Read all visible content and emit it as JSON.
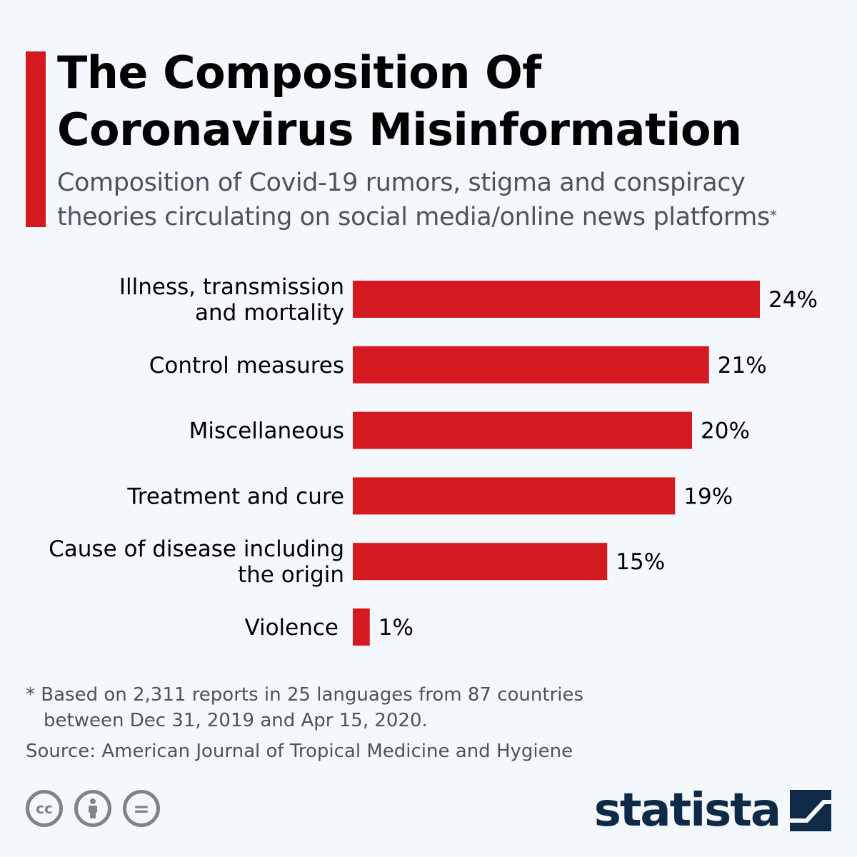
{
  "header": {
    "title_line1": "The Composition Of",
    "title_line2": "Coronavirus Misinformation",
    "subtitle_line1": "Composition of Covid-19 rumors, stigma and conspiracy",
    "subtitle_line2": "theories circulating on social media/online news platforms",
    "subtitle_mark": "*"
  },
  "colors": {
    "accent": "#d41921",
    "bar": "#d41921",
    "text": "#000000",
    "muted": "#4d535a",
    "brand": "#0f2a47"
  },
  "chart_data": {
    "type": "bar",
    "orientation": "horizontal",
    "categories": [
      [
        "Illness, transmission",
        "and mortality"
      ],
      [
        "Control measures"
      ],
      [
        "Miscellaneous"
      ],
      [
        "Treatment and cure"
      ],
      [
        "Cause of disease including",
        "the origin"
      ],
      [
        "Violence"
      ]
    ],
    "values": [
      24,
      21,
      20,
      19,
      15,
      1
    ],
    "value_labels": [
      "24%",
      "21%",
      "20%",
      "19%",
      "15%",
      "1%"
    ],
    "unit": "%",
    "xlim": [
      0,
      24
    ],
    "grid": false,
    "legend": "none"
  },
  "footer": {
    "note_line1": "* Based on 2,311 reports in 25 languages from 87 countries",
    "note_line2": "between Dec 31, 2019 and Apr 15, 2020.",
    "source": "Source: American Journal of Tropical Medicine and Hygiene",
    "license_icons": [
      "cc-icon",
      "attribution-icon",
      "no-derivatives-icon"
    ],
    "cc_label": "cc",
    "nd_label": "="
  },
  "brand": {
    "name": "statista"
  }
}
